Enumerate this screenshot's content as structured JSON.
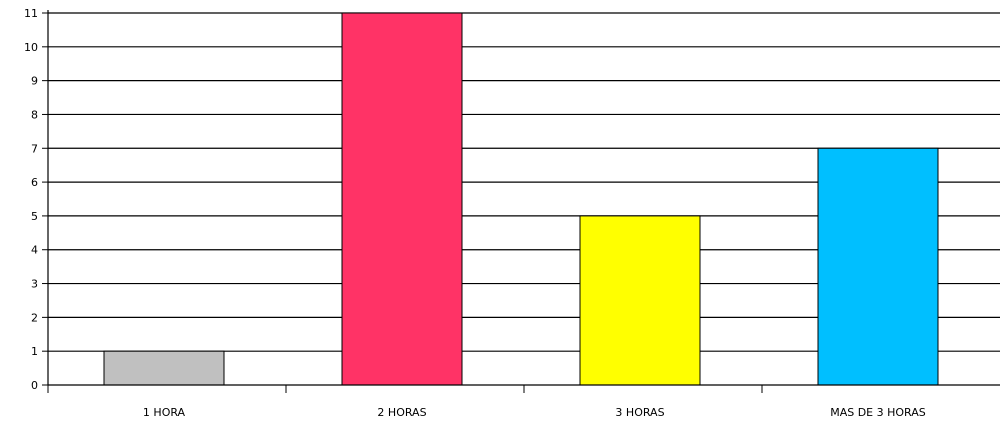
{
  "chart_data": {
    "type": "bar",
    "categories": [
      "1 HORA",
      "2 HORAS",
      "3 HORAS",
      "MAS DE 3 HORAS"
    ],
    "values": [
      1,
      11,
      5,
      7
    ],
    "colors": [
      "#c0c0c0",
      "#ff3366",
      "#ffff00",
      "#00bfff"
    ],
    "yticks": [
      0,
      1,
      2,
      3,
      4,
      5,
      6,
      7,
      8,
      9,
      10,
      11
    ],
    "ylim": [
      0,
      11
    ],
    "grid": true,
    "legend": "none"
  }
}
